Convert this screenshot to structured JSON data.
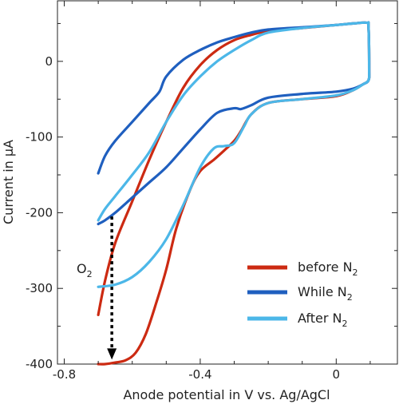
{
  "chart_data": {
    "type": "line",
    "xlabel": "Anode potential in V vs. Ag/AgCl",
    "ylabel": "Current in µA",
    "xlim": [
      -0.82,
      0.18
    ],
    "ylim": [
      -400,
      80
    ],
    "x_ticks": [
      -0.8,
      -0.4,
      0
    ],
    "x_tick_labels": [
      "-0.8",
      "-0.4",
      "0"
    ],
    "y_ticks": [
      -400,
      -300,
      -200,
      -100,
      0
    ],
    "y_tick_labels": [
      "-400",
      "-300",
      "-200",
      "-100",
      "0"
    ],
    "grid": false,
    "legend_position": "bottom-right",
    "series": [
      {
        "name": "before N",
        "name_sub": "2",
        "color": "#cc2a12",
        "points": [
          [
            -0.7,
            -335
          ],
          [
            -0.68,
            -290
          ],
          [
            -0.65,
            -240
          ],
          [
            -0.6,
            -185
          ],
          [
            -0.55,
            -130
          ],
          [
            -0.5,
            -80
          ],
          [
            -0.45,
            -35
          ],
          [
            -0.4,
            -5
          ],
          [
            -0.35,
            15
          ],
          [
            -0.3,
            28
          ],
          [
            -0.25,
            35
          ],
          [
            -0.2,
            40
          ],
          [
            -0.1,
            44
          ],
          [
            0.0,
            48
          ],
          [
            0.05,
            50
          ],
          [
            0.09,
            51
          ],
          [
            0.095,
            45
          ],
          [
            0.097,
            -10
          ],
          [
            0.095,
            -25
          ],
          [
            0.08,
            -30
          ],
          [
            0.05,
            -38
          ],
          [
            0.0,
            -46
          ],
          [
            -0.1,
            -50
          ],
          [
            -0.2,
            -55
          ],
          [
            -0.25,
            -70
          ],
          [
            -0.28,
            -92
          ],
          [
            -0.3,
            -105
          ],
          [
            -0.33,
            -118
          ],
          [
            -0.36,
            -130
          ],
          [
            -0.4,
            -145
          ],
          [
            -0.43,
            -170
          ],
          [
            -0.47,
            -220
          ],
          [
            -0.5,
            -275
          ],
          [
            -0.53,
            -320
          ],
          [
            -0.56,
            -360
          ],
          [
            -0.59,
            -385
          ],
          [
            -0.62,
            -395
          ],
          [
            -0.65,
            -398
          ],
          [
            -0.68,
            -400
          ],
          [
            -0.7,
            -400
          ]
        ]
      },
      {
        "name": "While N",
        "name_sub": "2",
        "color": "#1f5fbf",
        "points": [
          [
            -0.7,
            -148
          ],
          [
            -0.68,
            -125
          ],
          [
            -0.65,
            -105
          ],
          [
            -0.6,
            -80
          ],
          [
            -0.55,
            -55
          ],
          [
            -0.52,
            -40
          ],
          [
            -0.5,
            -20
          ],
          [
            -0.45,
            2
          ],
          [
            -0.4,
            15
          ],
          [
            -0.35,
            25
          ],
          [
            -0.3,
            32
          ],
          [
            -0.25,
            38
          ],
          [
            -0.2,
            42
          ],
          [
            -0.1,
            45
          ],
          [
            0.0,
            48
          ],
          [
            0.05,
            50
          ],
          [
            0.09,
            51
          ],
          [
            0.095,
            45
          ],
          [
            0.097,
            -10
          ],
          [
            0.095,
            -25
          ],
          [
            0.08,
            -30
          ],
          [
            0.05,
            -36
          ],
          [
            0.0,
            -40
          ],
          [
            -0.1,
            -43
          ],
          [
            -0.2,
            -48
          ],
          [
            -0.25,
            -58
          ],
          [
            -0.28,
            -63
          ],
          [
            -0.3,
            -62
          ],
          [
            -0.35,
            -68
          ],
          [
            -0.4,
            -90
          ],
          [
            -0.45,
            -115
          ],
          [
            -0.5,
            -140
          ],
          [
            -0.55,
            -160
          ],
          [
            -0.6,
            -180
          ],
          [
            -0.65,
            -200
          ],
          [
            -0.68,
            -210
          ],
          [
            -0.7,
            -215
          ]
        ]
      },
      {
        "name": "After N",
        "name_sub": "2",
        "color": "#4cb7e8",
        "points": [
          [
            -0.7,
            -210
          ],
          [
            -0.68,
            -195
          ],
          [
            -0.65,
            -178
          ],
          [
            -0.6,
            -150
          ],
          [
            -0.55,
            -120
          ],
          [
            -0.5,
            -80
          ],
          [
            -0.45,
            -45
          ],
          [
            -0.4,
            -20
          ],
          [
            -0.35,
            0
          ],
          [
            -0.3,
            15
          ],
          [
            -0.25,
            28
          ],
          [
            -0.2,
            38
          ],
          [
            -0.1,
            44
          ],
          [
            0.0,
            48
          ],
          [
            0.05,
            50
          ],
          [
            0.09,
            51
          ],
          [
            0.095,
            45
          ],
          [
            0.097,
            -10
          ],
          [
            0.095,
            -25
          ],
          [
            0.08,
            -30
          ],
          [
            0.05,
            -38
          ],
          [
            0.0,
            -45
          ],
          [
            -0.1,
            -50
          ],
          [
            -0.2,
            -55
          ],
          [
            -0.25,
            -70
          ],
          [
            -0.27,
            -85
          ],
          [
            -0.3,
            -108
          ],
          [
            -0.33,
            -112
          ],
          [
            -0.36,
            -115
          ],
          [
            -0.4,
            -140
          ],
          [
            -0.45,
            -190
          ],
          [
            -0.5,
            -235
          ],
          [
            -0.55,
            -265
          ],
          [
            -0.6,
            -285
          ],
          [
            -0.65,
            -295
          ],
          [
            -0.7,
            -298
          ]
        ]
      }
    ],
    "annotations": [
      {
        "text": "O",
        "sub": "2",
        "arrow_from": [
          -0.66,
          -205
        ],
        "arrow_to": [
          -0.66,
          -392
        ]
      }
    ]
  }
}
